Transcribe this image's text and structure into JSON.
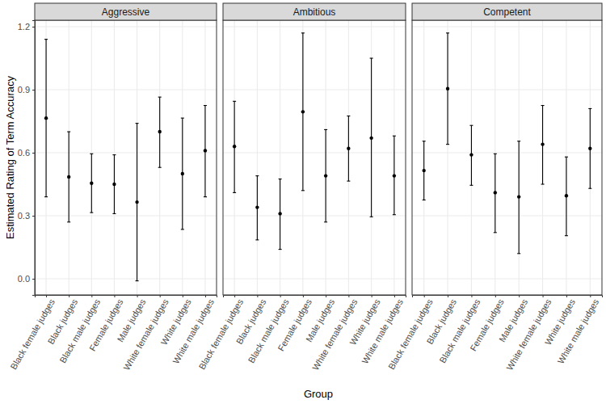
{
  "chart_data": {
    "type": "point_range",
    "x_label": "Group",
    "y_label": "Estimated Rating of Term Accuracy",
    "categories": [
      "Black female judges",
      "Black judges",
      "Black male judges",
      "Female judges",
      "Male judges",
      "White female judges",
      "White judges",
      "White male judges"
    ],
    "color": "#000000",
    "grid": true,
    "ylim": [
      -0.077,
      1.231
    ],
    "yticks": [
      {
        "value": 0,
        "label": "0.0"
      },
      0.3,
      0.6,
      0.9,
      1.2
    ],
    "panels": [
      {
        "title": "Aggressive",
        "values": [
          0.765,
          0.485,
          0.455,
          0.45,
          0.365,
          0.7,
          0.5,
          0.61
        ],
        "lower": [
          0.39,
          0.27,
          0.315,
          0.31,
          -0.01,
          0.53,
          0.235,
          0.39
        ],
        "upper": [
          1.14,
          0.7,
          0.595,
          0.59,
          0.74,
          0.865,
          0.765,
          0.825
        ]
      },
      {
        "title": "Ambitious",
        "values": [
          0.63,
          0.34,
          0.31,
          0.795,
          0.49,
          0.62,
          0.67,
          0.49
        ],
        "lower": [
          0.41,
          0.185,
          0.14,
          0.42,
          0.27,
          0.465,
          0.295,
          0.305
        ],
        "upper": [
          0.845,
          0.49,
          0.475,
          1.17,
          0.71,
          0.775,
          1.05,
          0.68
        ]
      },
      {
        "title": "Competent",
        "values": [
          0.515,
          0.905,
          0.59,
          0.41,
          0.39,
          0.64,
          0.395,
          0.62
        ],
        "lower": [
          0.375,
          0.64,
          0.445,
          0.22,
          0.12,
          0.45,
          0.205,
          0.43
        ],
        "upper": [
          0.655,
          1.17,
          0.73,
          0.595,
          0.655,
          0.825,
          0.58,
          0.81
        ]
      }
    ]
  }
}
